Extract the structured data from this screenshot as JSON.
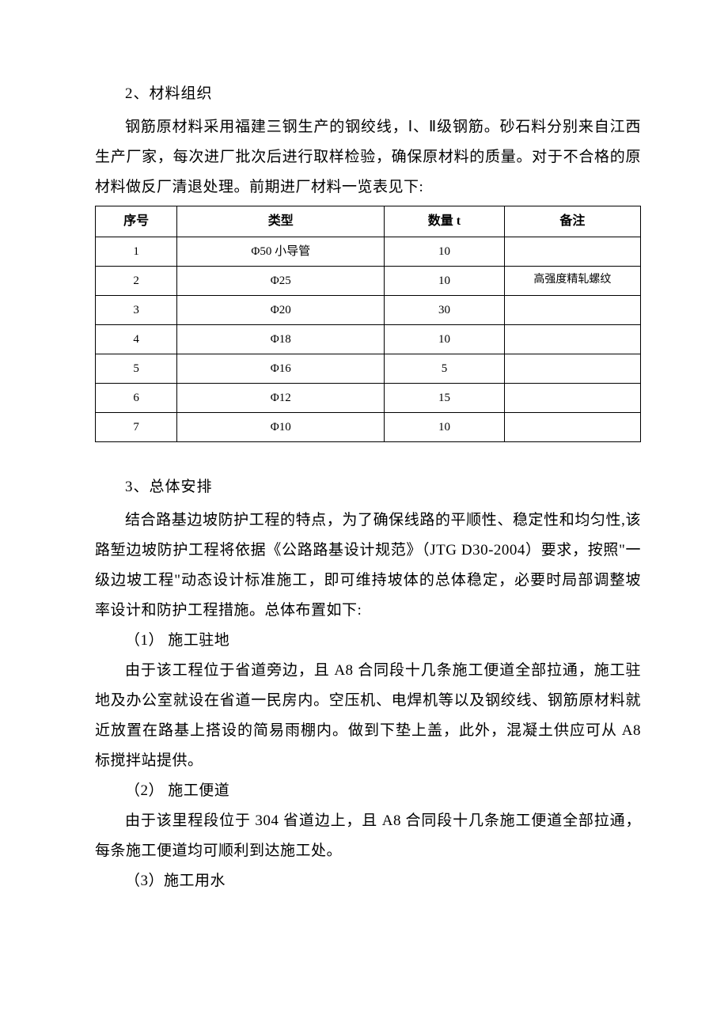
{
  "section2": {
    "heading": "2、材料组织",
    "para": "钢筋原材料采用福建三钢生产的钢绞线，Ⅰ、Ⅱ级钢筋。砂石料分别来自江西生产厂家，每次进厂批次后进行取样检验，确保原材料的质量。对于不合格的原材料做反厂清退处理。前期进厂材料一览表见下:"
  },
  "table": {
    "headers": {
      "seq": "序号",
      "type": "类型",
      "qty": "数量 t",
      "note": "备注"
    },
    "rows": [
      {
        "seq": "1",
        "type": "Φ50 小导管",
        "qty": "10",
        "note": ""
      },
      {
        "seq": "2",
        "type": "Φ25",
        "qty": "10",
        "note": "高强度精轧螺纹"
      },
      {
        "seq": "3",
        "type": "Φ20",
        "qty": "30",
        "note": ""
      },
      {
        "seq": "4",
        "type": "Φ18",
        "qty": "10",
        "note": ""
      },
      {
        "seq": "5",
        "type": "Φ16",
        "qty": "5",
        "note": ""
      },
      {
        "seq": "6",
        "type": "Φ12",
        "qty": "15",
        "note": ""
      },
      {
        "seq": "7",
        "type": "Φ10",
        "qty": "10",
        "note": ""
      }
    ]
  },
  "section3": {
    "heading": "3、总体安排",
    "intro": "结合路基边坡防护工程的特点，为了确保线路的平顺性、稳定性和均匀性,该路堑边坡防护工程将依据《公路路基设计规范》（JTG D30-2004）要求，按照\"一级边坡工程\"动态设计标准施工，即可维持坡体的总体稳定，必要时局部调整坡率设计和防护工程措施。总体布置如下:",
    "items": [
      {
        "title": "（1） 施工驻地",
        "body": "由于该工程位于省道旁边，且 A8 合同段十几条施工便道全部拉通，施工驻地及办公室就设在省道一民房内。空压机、电焊机等以及钢绞线、钢筋原材料就近放置在路基上搭设的简易雨棚内。做到下垫上盖，此外，混凝土供应可从 A8 标搅拌站提供。"
      },
      {
        "title": "（2） 施工便道",
        "body": "由于该里程段位于 304 省道边上，且 A8 合同段十几条施工便道全部拉通，每条施工便道均可顺利到达施工处。"
      },
      {
        "title": "（3）施工用水",
        "body": ""
      }
    ]
  }
}
